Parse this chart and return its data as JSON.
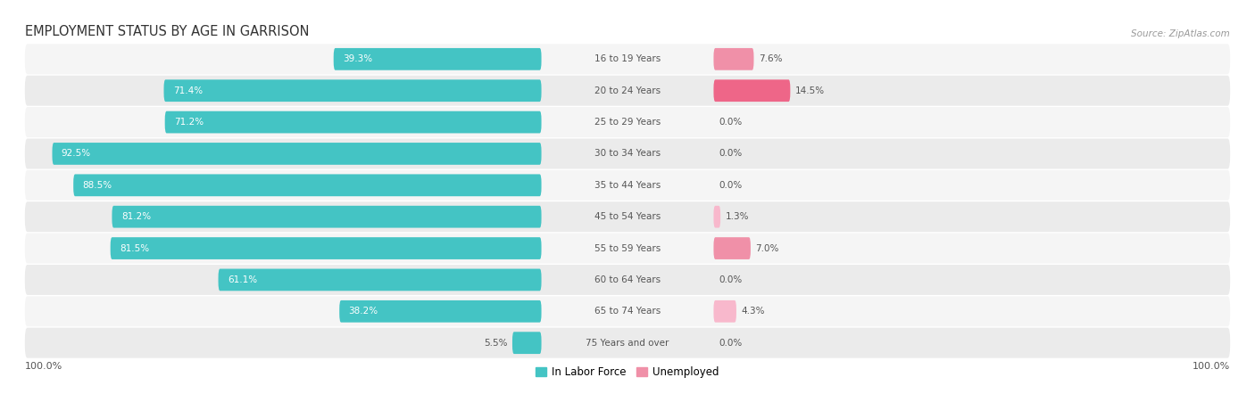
{
  "title": "EMPLOYMENT STATUS BY AGE IN GARRISON",
  "source": "Source: ZipAtlas.com",
  "categories": [
    "16 to 19 Years",
    "20 to 24 Years",
    "25 to 29 Years",
    "30 to 34 Years",
    "35 to 44 Years",
    "45 to 54 Years",
    "55 to 59 Years",
    "60 to 64 Years",
    "65 to 74 Years",
    "75 Years and over"
  ],
  "labor_force": [
    39.3,
    71.4,
    71.2,
    92.5,
    88.5,
    81.2,
    81.5,
    61.1,
    38.2,
    5.5
  ],
  "unemployed": [
    7.6,
    14.5,
    0.0,
    0.0,
    0.0,
    1.3,
    7.0,
    0.0,
    4.3,
    0.0
  ],
  "labor_force_color": "#44c4c4",
  "unemployed_color_strong": "#ee6688",
  "unemployed_color_medium": "#f090a8",
  "unemployed_color_light": "#f8b8cc",
  "row_bg_even": "#f5f5f5",
  "row_bg_odd": "#ebebeb",
  "label_white": "#ffffff",
  "label_dark": "#555555",
  "legend_labor": "In Labor Force",
  "legend_unemployed": "Unemployed",
  "figwidth": 14.06,
  "figheight": 4.51
}
